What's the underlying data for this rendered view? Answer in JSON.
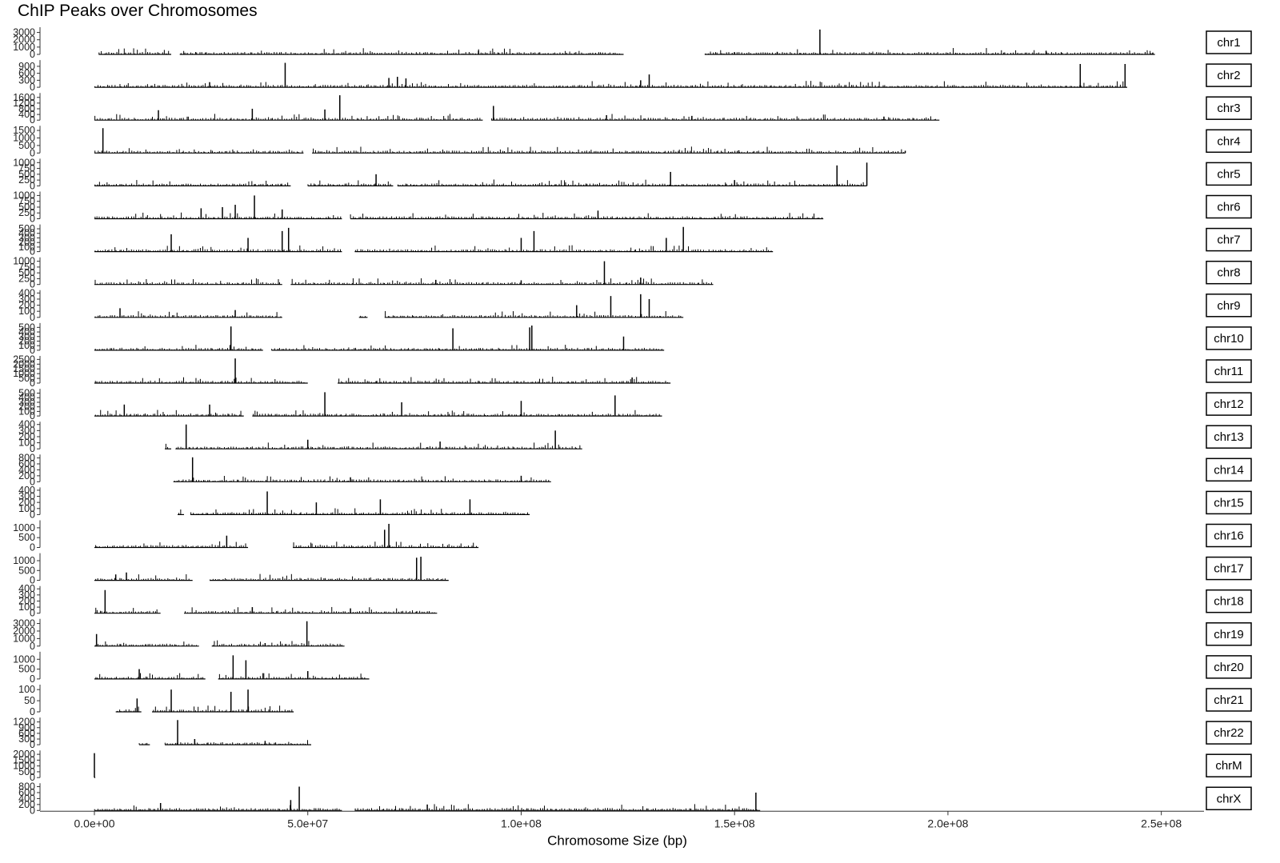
{
  "chart_data": {
    "type": "bar",
    "title": "ChIP Peaks over Chromosomes",
    "xlabel": "Chromosome Size (bp)",
    "ylabel": "",
    "xlim": [
      0,
      260000000
    ],
    "x_ticks": [
      0,
      50000000,
      100000000,
      150000000,
      200000000,
      250000000
    ],
    "x_tick_labels": [
      "0.0e+00",
      "5.0e+07",
      "1.0e+08",
      "1.5e+08",
      "2.0e+08",
      "2.5e+08"
    ],
    "grid": false,
    "legend": "none",
    "bar_color": "#000000",
    "facets": [
      {
        "name": "chr1",
        "ymax": 3500,
        "ticks": [
          0,
          1000,
          2000,
          3000
        ],
        "tick_labels": [
          "0",
          "1000",
          "2000",
          "3000"
        ],
        "segments": [
          [
            1000000,
            18000000
          ],
          [
            20000000,
            124000000
          ],
          [
            143000000,
            248500000
          ]
        ],
        "peaks": [
          [
            17000000,
            80
          ],
          [
            55000000,
            90
          ],
          [
            90000000,
            500
          ],
          [
            150000000,
            300
          ],
          [
            160000000,
            350
          ],
          [
            170000000,
            3400
          ],
          [
            223000000,
            500
          ],
          [
            248000000,
            250
          ]
        ]
      },
      {
        "name": "chr2",
        "ymax": 1100,
        "ticks": [
          0,
          300,
          600,
          900
        ],
        "tick_labels": [
          "0",
          "300",
          "600",
          "900"
        ],
        "segments": [
          [
            0,
            242000000
          ]
        ],
        "peaks": [
          [
            27000000,
            220
          ],
          [
            44700000,
            1050
          ],
          [
            69000000,
            400
          ],
          [
            71000000,
            450
          ],
          [
            73000000,
            380
          ],
          [
            128000000,
            300
          ],
          [
            130000000,
            550
          ],
          [
            231000000,
            1000
          ],
          [
            241500000,
            1000
          ]
        ]
      },
      {
        "name": "chr3",
        "ymax": 1800,
        "ticks": [
          0,
          400,
          800,
          1200,
          1600
        ],
        "tick_labels": [
          "0",
          "400",
          "800",
          "1200",
          "1600"
        ],
        "segments": [
          [
            0,
            91000000
          ],
          [
            93000000,
            198000000
          ]
        ],
        "peaks": [
          [
            15000000,
            700
          ],
          [
            37000000,
            800
          ],
          [
            54000000,
            750
          ],
          [
            57500000,
            1750
          ],
          [
            93500000,
            1000
          ],
          [
            120000000,
            350
          ],
          [
            140000000,
            300
          ],
          [
            185000000,
            250
          ]
        ]
      },
      {
        "name": "chr4",
        "ymax": 1700,
        "ticks": [
          0,
          500,
          1000,
          1500
        ],
        "tick_labels": [
          "0",
          "500",
          "1000",
          "1500"
        ],
        "segments": [
          [
            0,
            49000000
          ],
          [
            51000000,
            190000000
          ]
        ],
        "peaks": [
          [
            2000000,
            1650
          ],
          [
            151000000,
            180
          ],
          [
            190000000,
            150
          ]
        ]
      },
      {
        "name": "chr5",
        "ymax": 1100,
        "ticks": [
          0,
          250,
          500,
          750,
          1000
        ],
        "tick_labels": [
          "0",
          "250",
          "500",
          "750",
          "1000"
        ],
        "segments": [
          [
            0,
            46000000
          ],
          [
            50000000,
            70000000
          ],
          [
            71000000,
            181000000
          ]
        ],
        "peaks": [
          [
            66000000,
            500
          ],
          [
            135000000,
            600
          ],
          [
            150000000,
            250
          ],
          [
            174000000,
            880
          ],
          [
            181000000,
            1000
          ]
        ]
      },
      {
        "name": "chr6",
        "ymax": 1100,
        "ticks": [
          0,
          250,
          500,
          750,
          1000
        ],
        "tick_labels": [
          "0",
          "250",
          "500",
          "750",
          "1000"
        ],
        "segments": [
          [
            0,
            58000000
          ],
          [
            60000000,
            170800000
          ]
        ],
        "peaks": [
          [
            25000000,
            450
          ],
          [
            30000000,
            500
          ],
          [
            33000000,
            600
          ],
          [
            37500000,
            1000
          ],
          [
            44000000,
            400
          ],
          [
            118000000,
            350
          ]
        ]
      },
      {
        "name": "chr7",
        "ymax": 560,
        "ticks": [
          0,
          100,
          200,
          300,
          400,
          500
        ],
        "tick_labels": [
          "0",
          "100",
          "200",
          "300",
          "400",
          "500"
        ],
        "segments": [
          [
            0,
            58000000
          ],
          [
            61000000,
            159000000
          ]
        ],
        "peaks": [
          [
            18000000,
            380
          ],
          [
            36000000,
            300
          ],
          [
            44000000,
            450
          ],
          [
            45500000,
            520
          ],
          [
            100000000,
            300
          ],
          [
            103000000,
            450
          ],
          [
            134000000,
            300
          ],
          [
            138000000,
            540
          ]
        ]
      },
      {
        "name": "chr8",
        "ymax": 1100,
        "ticks": [
          0,
          250,
          500,
          750,
          1000
        ],
        "tick_labels": [
          "0",
          "250",
          "500",
          "750",
          "1000"
        ],
        "segments": [
          [
            0,
            44000000
          ],
          [
            46000000,
            145000000
          ]
        ],
        "peaks": [
          [
            80000000,
            200
          ],
          [
            100000000,
            180
          ],
          [
            119500000,
            1000
          ],
          [
            128000000,
            300
          ]
        ]
      },
      {
        "name": "chr9",
        "ymax": 420,
        "ticks": [
          0,
          100,
          200,
          300,
          400
        ],
        "tick_labels": [
          "0",
          "100",
          "200",
          "300",
          "400"
        ],
        "segments": [
          [
            0,
            44000000
          ],
          [
            62000000,
            64000000
          ],
          [
            68000000,
            138000000
          ]
        ],
        "peaks": [
          [
            6000000,
            150
          ],
          [
            33000000,
            120
          ],
          [
            113000000,
            200
          ],
          [
            121000000,
            350
          ],
          [
            128000000,
            380
          ],
          [
            130000000,
            300
          ]
        ]
      },
      {
        "name": "chr10",
        "ymax": 560,
        "ticks": [
          0,
          100,
          200,
          300,
          400,
          500
        ],
        "tick_labels": [
          "0",
          "100",
          "200",
          "300",
          "400",
          "500"
        ],
        "segments": [
          [
            0,
            39500000
          ],
          [
            41500000,
            133500000
          ]
        ],
        "peaks": [
          [
            32000000,
            520
          ],
          [
            84000000,
            480
          ],
          [
            102000000,
            500
          ],
          [
            102500000,
            540
          ],
          [
            124000000,
            300
          ]
        ]
      },
      {
        "name": "chr11",
        "ymax": 2700,
        "ticks": [
          0,
          500,
          1000,
          1500,
          2000,
          2500
        ],
        "tick_labels": [
          "0",
          "500",
          "1000",
          "1500",
          "2000",
          "2500"
        ],
        "segments": [
          [
            0,
            50000000
          ],
          [
            57000000,
            135000000
          ]
        ],
        "peaks": [
          [
            33000000,
            2600
          ],
          [
            66000000,
            200
          ],
          [
            126000000,
            600
          ]
        ]
      },
      {
        "name": "chr12",
        "ymax": 560,
        "ticks": [
          0,
          100,
          200,
          300,
          400,
          500
        ],
        "tick_labels": [
          "0",
          "100",
          "200",
          "300",
          "400",
          "500"
        ],
        "segments": [
          [
            0,
            35000000
          ],
          [
            37000000,
            133000000
          ]
        ],
        "peaks": [
          [
            7000000,
            250
          ],
          [
            27000000,
            250
          ],
          [
            54000000,
            520
          ],
          [
            72000000,
            300
          ],
          [
            100000000,
            330
          ],
          [
            122000000,
            450
          ]
        ]
      },
      {
        "name": "chr13",
        "ymax": 420,
        "ticks": [
          0,
          100,
          200,
          300,
          400
        ],
        "tick_labels": [
          "0",
          "100",
          "200",
          "300",
          "400"
        ],
        "segments": [
          [
            16500000,
            18000000
          ],
          [
            19000000,
            114300000
          ]
        ],
        "peaks": [
          [
            21500000,
            400
          ],
          [
            50000000,
            150
          ],
          [
            81000000,
            120
          ],
          [
            108000000,
            300
          ]
        ]
      },
      {
        "name": "chr14",
        "ymax": 860,
        "ticks": [
          0,
          200,
          400,
          600,
          800
        ],
        "tick_labels": [
          "0",
          "200",
          "400",
          "600",
          "800"
        ],
        "segments": [
          [
            18500000,
            107000000
          ]
        ],
        "peaks": [
          [
            23000000,
            820
          ],
          [
            60000000,
            150
          ],
          [
            100000000,
            200
          ]
        ]
      },
      {
        "name": "chr15",
        "ymax": 420,
        "ticks": [
          0,
          100,
          200,
          300,
          400
        ],
        "tick_labels": [
          "0",
          "100",
          "200",
          "300",
          "400"
        ],
        "segments": [
          [
            19500000,
            21000000
          ],
          [
            22500000,
            102000000
          ]
        ],
        "peaks": [
          [
            40500000,
            380
          ],
          [
            52000000,
            200
          ],
          [
            67000000,
            250
          ],
          [
            88000000,
            250
          ]
        ]
      },
      {
        "name": "chr16",
        "ymax": 1300,
        "ticks": [
          0,
          500,
          1000
        ],
        "tick_labels": [
          "0",
          "500",
          "1000"
        ],
        "segments": [
          [
            0,
            36000000
          ],
          [
            46500000,
            90000000
          ]
        ],
        "peaks": [
          [
            31000000,
            600
          ],
          [
            68000000,
            900
          ],
          [
            69000000,
            1200
          ]
        ]
      },
      {
        "name": "chr17",
        "ymax": 1300,
        "ticks": [
          0,
          500,
          1000
        ],
        "tick_labels": [
          "0",
          "500",
          "1000"
        ],
        "segments": [
          [
            0,
            23000000
          ],
          [
            27000000,
            83000000
          ]
        ],
        "peaks": [
          [
            5000000,
            300
          ],
          [
            7500000,
            400
          ],
          [
            75500000,
            1150
          ],
          [
            76500000,
            1200
          ]
        ]
      },
      {
        "name": "chr18",
        "ymax": 420,
        "ticks": [
          0,
          100,
          200,
          300,
          400
        ],
        "tick_labels": [
          "0",
          "100",
          "200",
          "300",
          "400"
        ],
        "segments": [
          [
            0,
            15500000
          ],
          [
            21000000,
            80300000
          ]
        ],
        "peaks": [
          [
            2500000,
            380
          ],
          [
            37000000,
            100
          ],
          [
            60000000,
            80
          ]
        ]
      },
      {
        "name": "chr19",
        "ymax": 3400,
        "ticks": [
          0,
          1000,
          2000,
          3000
        ],
        "tick_labels": [
          "0",
          "1000",
          "2000",
          "3000"
        ],
        "segments": [
          [
            0,
            24500000
          ],
          [
            27500000,
            58600000
          ]
        ],
        "peaks": [
          [
            500000,
            1600
          ],
          [
            12000000,
            250
          ],
          [
            40000000,
            400
          ],
          [
            49800000,
            3300
          ]
        ]
      },
      {
        "name": "chr20",
        "ymax": 1300,
        "ticks": [
          0,
          500,
          1000
        ],
        "tick_labels": [
          "0",
          "500",
          "1000"
        ],
        "segments": [
          [
            0,
            26000000
          ],
          [
            29000000,
            64400000
          ]
        ],
        "peaks": [
          [
            10500000,
            500
          ],
          [
            32500000,
            1200
          ],
          [
            35500000,
            950
          ],
          [
            50000000,
            400
          ]
        ]
      },
      {
        "name": "chr21",
        "ymax": 115,
        "ticks": [
          0,
          50,
          100
        ],
        "tick_labels": [
          "0",
          "50",
          "100"
        ],
        "segments": [
          [
            5000000,
            11000000
          ],
          [
            13500000,
            46700000
          ]
        ],
        "peaks": [
          [
            10000000,
            60
          ],
          [
            18000000,
            100
          ],
          [
            32000000,
            90
          ],
          [
            36000000,
            100
          ]
        ]
      },
      {
        "name": "chr22",
        "ymax": 1350,
        "ticks": [
          0,
          300,
          600,
          900,
          1200
        ],
        "tick_labels": [
          "0",
          "300",
          "600",
          "900",
          "1200"
        ],
        "segments": [
          [
            10500000,
            13000000
          ],
          [
            16500000,
            50800000
          ]
        ],
        "peaks": [
          [
            19500000,
            1300
          ],
          [
            23500000,
            300
          ],
          [
            40000000,
            200
          ]
        ]
      },
      {
        "name": "chrM",
        "ymax": 2200,
        "ticks": [
          0,
          500,
          1000,
          1500,
          2000
        ],
        "tick_labels": [
          "0",
          "500",
          "1000",
          "1500",
          "2000"
        ],
        "segments": [
          [
            0,
            200000
          ]
        ],
        "peaks": [
          [
            0,
            2100
          ]
        ]
      },
      {
        "name": "chrX",
        "ymax": 860,
        "ticks": [
          0,
          200,
          400,
          600,
          800
        ],
        "tick_labels": [
          "0",
          "200",
          "400",
          "600",
          "800"
        ],
        "segments": [
          [
            0,
            58000000
          ],
          [
            61000000,
            156000000
          ]
        ],
        "peaks": [
          [
            15500000,
            250
          ],
          [
            46000000,
            350
          ],
          [
            48000000,
            800
          ],
          [
            78000000,
            200
          ],
          [
            155000000,
            600
          ]
        ]
      }
    ]
  }
}
